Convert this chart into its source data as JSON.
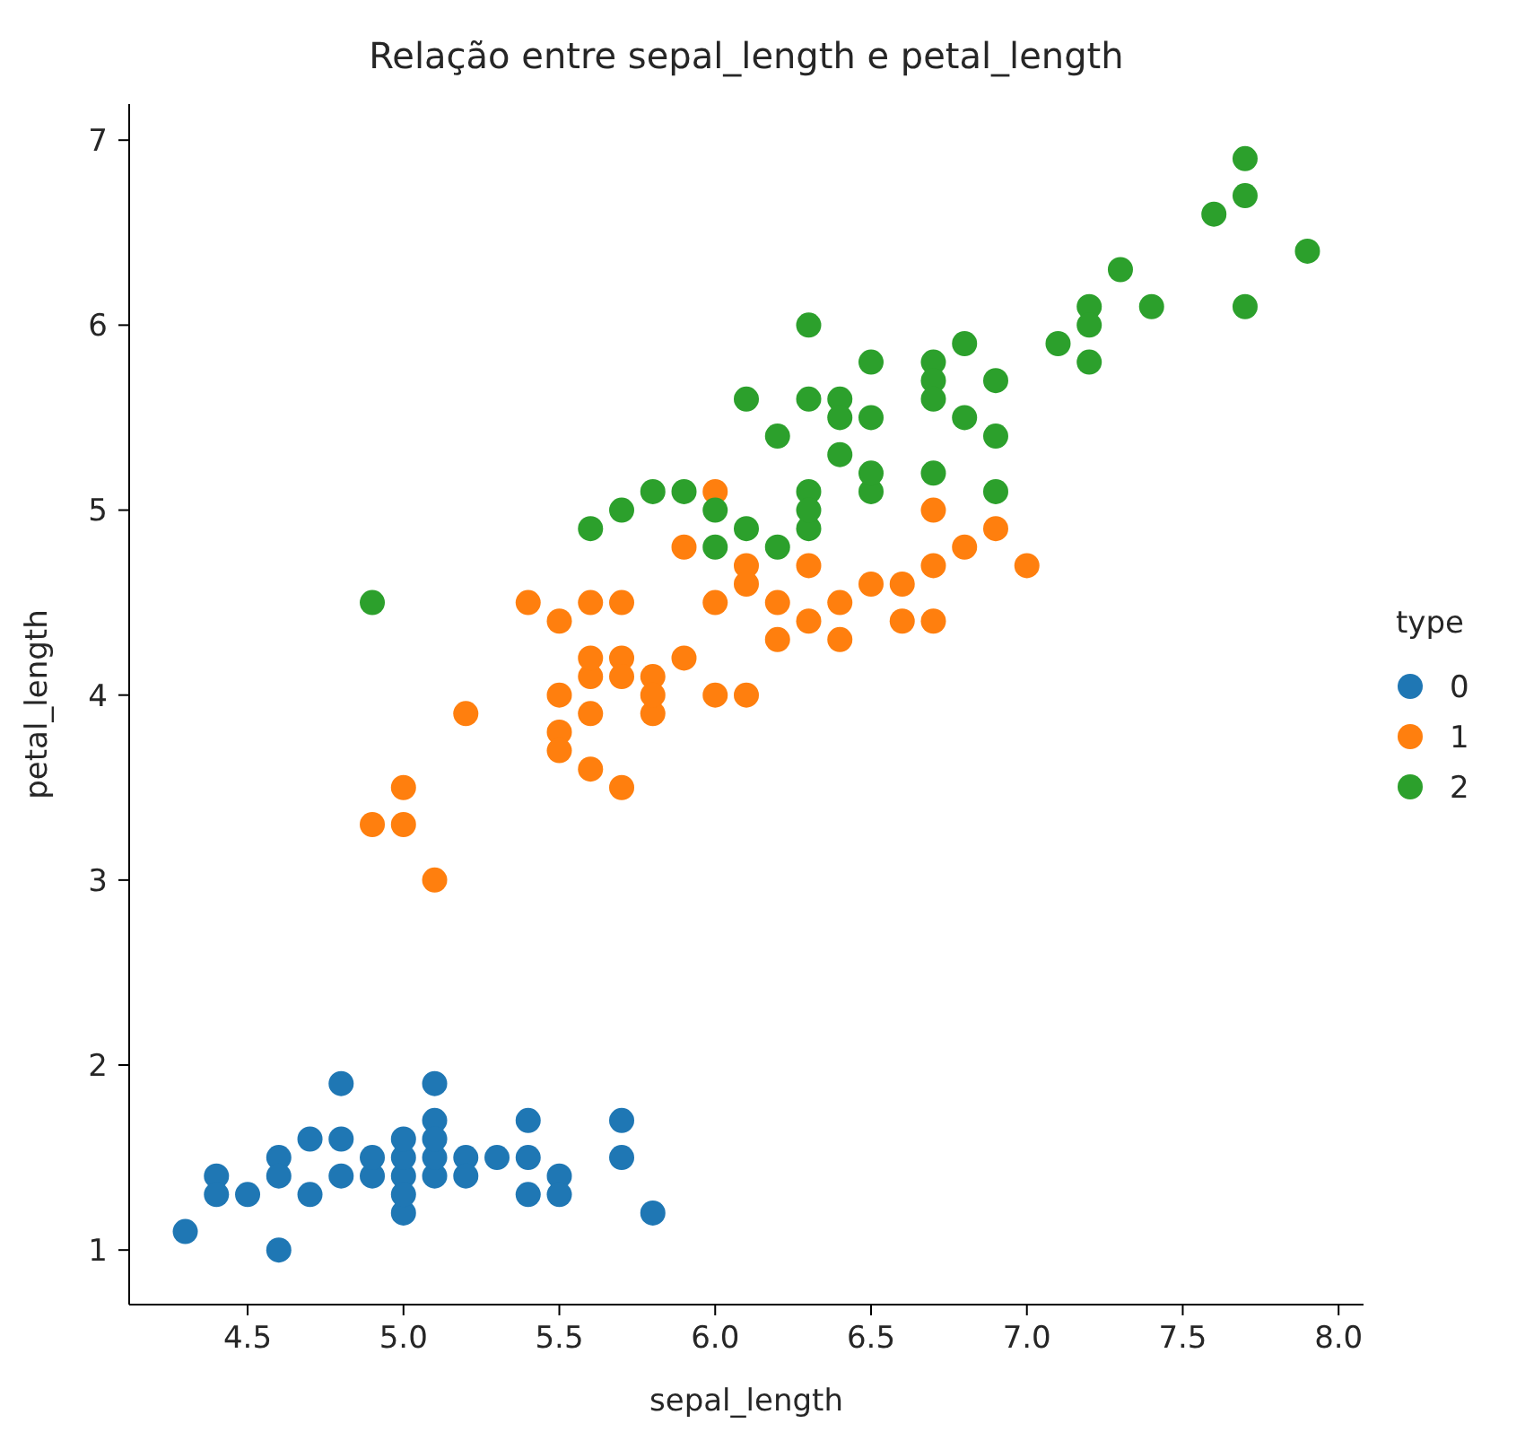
{
  "chart_data": {
    "type": "scatter",
    "title": "Relação entre sepal_length e petal_length",
    "xlabel": "sepal_length",
    "ylabel": "petal_length",
    "legend_title": "type",
    "legend": "right",
    "grid": false,
    "marker": "circle",
    "xlim": [
      4.12,
      8.08
    ],
    "ylim": [
      0.705,
      7.195
    ],
    "xticks": [
      {
        "value": 4.5,
        "label": "4.5"
      },
      {
        "value": 5,
        "label": "5.0"
      },
      {
        "value": 5.5,
        "label": "5.5"
      },
      {
        "value": 6,
        "label": "6.0"
      },
      {
        "value": 6.5,
        "label": "6.5"
      },
      {
        "value": 7,
        "label": "7.0"
      },
      {
        "value": 7.5,
        "label": "7.5"
      },
      {
        "value": 8,
        "label": "8.0"
      }
    ],
    "yticks": [
      1,
      2,
      3,
      4,
      5,
      6,
      7
    ],
    "series": [
      {
        "name": "0",
        "color": "#1f77b4",
        "x": [
          5.1,
          4.9,
          4.7,
          4.6,
          5.0,
          5.4,
          4.6,
          5.0,
          4.4,
          4.9,
          5.4,
          4.8,
          4.8,
          4.3,
          5.8,
          5.7,
          5.4,
          5.7,
          5.1,
          4.6,
          5.1,
          4.8,
          5.0,
          5.2,
          5.2,
          4.7,
          5.5,
          5.0,
          5.5,
          4.4,
          5.0,
          4.5,
          5.1,
          5.1,
          5.3
        ],
        "values": [
          1.4,
          1.4,
          1.3,
          1.5,
          1.4,
          1.7,
          1.4,
          1.5,
          1.4,
          1.5,
          1.5,
          1.6,
          1.4,
          1.1,
          1.2,
          1.5,
          1.3,
          1.7,
          1.5,
          1.0,
          1.7,
          1.9,
          1.6,
          1.5,
          1.4,
          1.6,
          1.4,
          1.2,
          1.3,
          1.3,
          1.3,
          1.3,
          1.9,
          1.6,
          1.5
        ]
      },
      {
        "name": "1",
        "color": "#ff7f0e",
        "x": [
          7.0,
          6.4,
          6.9,
          5.5,
          6.5,
          5.7,
          6.3,
          4.9,
          6.6,
          5.2,
          5.0,
          5.9,
          6.0,
          6.1,
          5.6,
          6.7,
          5.6,
          5.8,
          6.2,
          5.6,
          5.9,
          6.1,
          6.4,
          6.6,
          6.8,
          6.7,
          6.0,
          5.7,
          5.5,
          5.5,
          5.8,
          6.0,
          5.4,
          6.7,
          6.3,
          5.6,
          5.5,
          6.1,
          5.8,
          5.0,
          5.6,
          5.7,
          6.2,
          5.1,
          5.7
        ],
        "values": [
          4.7,
          4.5,
          4.9,
          4.0,
          4.6,
          4.5,
          4.7,
          3.3,
          4.6,
          3.9,
          3.5,
          4.2,
          4.0,
          4.7,
          3.6,
          4.4,
          4.5,
          4.1,
          4.5,
          3.9,
          4.8,
          4.0,
          4.3,
          4.4,
          4.8,
          5.0,
          4.5,
          3.5,
          3.8,
          3.7,
          3.9,
          5.1,
          4.5,
          4.7,
          4.4,
          4.1,
          4.4,
          4.6,
          4.0,
          3.3,
          4.2,
          4.2,
          4.3,
          3.0,
          4.1
        ]
      },
      {
        "name": "2",
        "color": "#2ca02c",
        "x": [
          6.3,
          5.8,
          7.1,
          6.3,
          6.5,
          7.6,
          4.9,
          7.3,
          6.7,
          7.2,
          6.5,
          6.4,
          6.8,
          5.7,
          6.5,
          7.7,
          7.7,
          6.0,
          6.9,
          5.6,
          6.3,
          6.7,
          7.2,
          6.2,
          6.1,
          6.4,
          7.2,
          7.4,
          7.9,
          6.3,
          6.1,
          7.7,
          6.4,
          6.0,
          6.9,
          6.7,
          6.9,
          6.8,
          6.7,
          6.3,
          6.5,
          6.2,
          5.9
        ],
        "values": [
          6.0,
          5.1,
          5.9,
          5.6,
          5.8,
          6.6,
          4.5,
          6.3,
          5.8,
          6.1,
          5.1,
          5.3,
          5.5,
          5.0,
          5.5,
          6.7,
          6.9,
          5.0,
          5.7,
          4.9,
          4.9,
          5.7,
          6.0,
          4.8,
          4.9,
          5.6,
          5.8,
          6.1,
          6.4,
          5.1,
          5.6,
          6.1,
          5.5,
          4.8,
          5.4,
          5.6,
          5.1,
          5.9,
          5.2,
          5.0,
          5.2,
          5.4,
          5.1
        ]
      }
    ]
  }
}
